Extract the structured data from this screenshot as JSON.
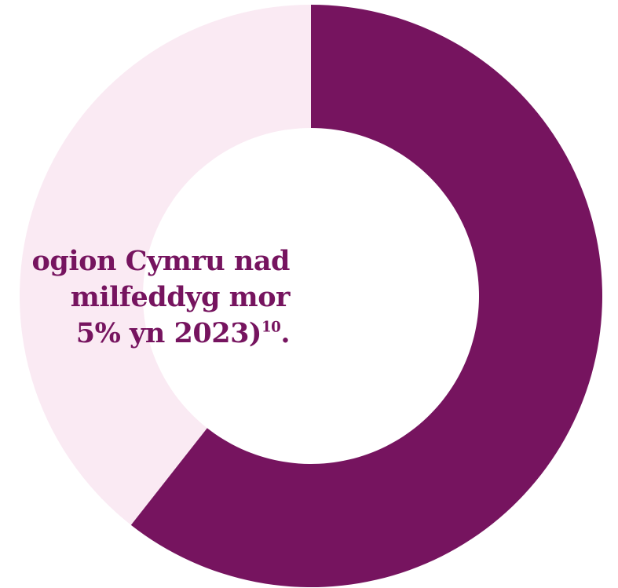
{
  "chart_data": {
    "type": "pie",
    "title": "",
    "slices": [
      {
        "value": 60.6,
        "color": "#76145f"
      },
      {
        "value": 39.4,
        "color": "#faeaf3"
      }
    ],
    "caption": {
      "line1": "ogion Cymru nad",
      "line2": "milfeddyg mor",
      "line3_text": "5% yn 2023)",
      "line3_sup": "10",
      "line3_end": "."
    }
  },
  "colors": {
    "accent": "#76145f",
    "light": "#faeaf3",
    "background": "#ffffff"
  }
}
